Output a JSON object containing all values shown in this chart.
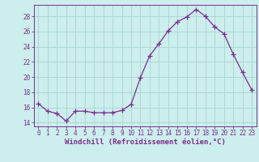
{
  "x": [
    0,
    1,
    2,
    3,
    4,
    5,
    6,
    7,
    8,
    9,
    10,
    11,
    12,
    13,
    14,
    15,
    16,
    17,
    18,
    19,
    20,
    21,
    22,
    23
  ],
  "y": [
    16.5,
    15.5,
    15.2,
    14.2,
    15.5,
    15.5,
    15.3,
    15.3,
    15.3,
    15.6,
    16.4,
    19.9,
    22.8,
    24.4,
    26.1,
    27.3,
    27.9,
    28.9,
    28.0,
    26.6,
    25.7,
    23.0,
    20.6,
    18.3
  ],
  "line_color": "#7b2d8b",
  "marker": "+",
  "marker_size": 4,
  "bg_color": "#cceeed",
  "grid_color": "#aad8d6",
  "xlabel": "Windchill (Refroidissement éolien,°C)",
  "xlim_min": -0.5,
  "xlim_max": 23.5,
  "ylim_min": 13.5,
  "ylim_max": 29.5,
  "yticks": [
    14,
    16,
    18,
    20,
    22,
    24,
    26,
    28
  ],
  "xticks": [
    0,
    1,
    2,
    3,
    4,
    5,
    6,
    7,
    8,
    9,
    10,
    11,
    12,
    13,
    14,
    15,
    16,
    17,
    18,
    19,
    20,
    21,
    22,
    23
  ],
  "label_color": "#7b2d8b",
  "tick_color": "#7b2d8b",
  "axis_color": "#7b2d8b",
  "label_fontsize": 6.5,
  "tick_fontsize": 5.5
}
